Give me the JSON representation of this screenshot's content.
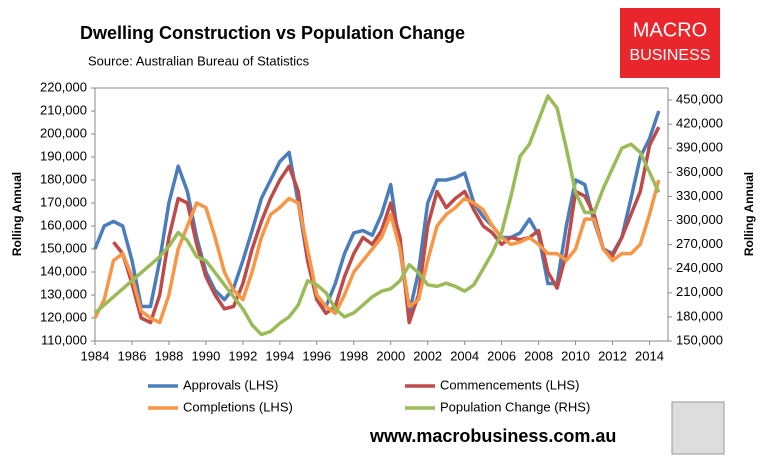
{
  "chart_data": {
    "type": "line",
    "title": "Dwelling Construction vs Population Change",
    "subtitle": "Source: Australian Bureau of Statistics",
    "y_label": "Rolling Annual",
    "y2_label": "Rolling Annual",
    "brand": [
      "MACRO",
      "BUSINESS"
    ],
    "website": "www.macrobusiness.com.au",
    "xlim": [
      1984,
      2015
    ],
    "xticks": [
      1984,
      1986,
      1988,
      1990,
      1992,
      1994,
      1996,
      1998,
      2000,
      2002,
      2004,
      2006,
      2008,
      2010,
      2012,
      2014
    ],
    "ylim": [
      110000,
      220000
    ],
    "yticks": [
      {
        "value": 110000,
        "label": "110,000"
      },
      {
        "value": 120000,
        "label": "120,000"
      },
      {
        "value": 130000,
        "label": "130,000"
      },
      {
        "value": 140000,
        "label": "140,000"
      },
      {
        "value": 150000,
        "label": "150,000"
      },
      {
        "value": 160000,
        "label": "160,000"
      },
      {
        "value": 170000,
        "label": "170,000"
      },
      {
        "value": 180000,
        "label": "180,000"
      },
      {
        "value": 190000,
        "label": "190,000"
      },
      {
        "value": 200000,
        "label": "200,000"
      },
      {
        "value": 210000,
        "label": "210,000"
      },
      {
        "value": 220000,
        "label": "220,000"
      }
    ],
    "y2lim": [
      150000,
      465000
    ],
    "y2ticks": [
      {
        "value": 150000,
        "label": "150,000"
      },
      {
        "value": 180000,
        "label": "180,000"
      },
      {
        "value": 210000,
        "label": "210,000"
      },
      {
        "value": 240000,
        "label": "240,000"
      },
      {
        "value": 270000,
        "label": "270,000"
      },
      {
        "value": 300000,
        "label": "300,000"
      },
      {
        "value": 330000,
        "label": "330,000"
      },
      {
        "value": 360000,
        "label": "360,000"
      },
      {
        "value": 390000,
        "label": "390,000"
      },
      {
        "value": 420000,
        "label": "420,000"
      },
      {
        "value": 450000,
        "label": "450,000"
      }
    ],
    "grid": false,
    "x": [
      1984,
      1984.5,
      1985,
      1985.5,
      1986,
      1986.5,
      1987,
      1987.5,
      1988,
      1988.5,
      1989,
      1989.5,
      1990,
      1990.5,
      1991,
      1991.5,
      1992,
      1992.5,
      1993,
      1993.5,
      1994,
      1994.5,
      1995,
      1995.5,
      1996,
      1996.5,
      1997,
      1997.5,
      1998,
      1998.5,
      1999,
      1999.5,
      2000,
      2000.5,
      2001,
      2001.5,
      2002,
      2002.5,
      2003,
      2003.5,
      2004,
      2004.5,
      2005,
      2005.5,
      2006,
      2006.5,
      2007,
      2007.5,
      2008,
      2008.5,
      2009,
      2009.5,
      2010,
      2010.5,
      2011,
      2011.5,
      2012,
      2012.5,
      2013,
      2013.5,
      2014,
      2014.5
    ],
    "series": [
      {
        "name": "Approvals (LHS)",
        "color": "#4a7ebb",
        "values": [
          150000,
          160000,
          162000,
          160000,
          145000,
          125000,
          125000,
          145000,
          170000,
          186000,
          175000,
          155000,
          140000,
          132000,
          128000,
          133000,
          145000,
          158000,
          172000,
          180000,
          188000,
          192000,
          170000,
          145000,
          128000,
          125000,
          135000,
          148000,
          157000,
          158000,
          156000,
          165000,
          178000,
          150000,
          122000,
          140000,
          170000,
          180000,
          180000,
          181000,
          183000,
          170000,
          164000,
          160000,
          155000,
          155000,
          157000,
          163000,
          156000,
          135000,
          135000,
          160000,
          180000,
          178000,
          162000,
          150000,
          148000,
          155000,
          172000,
          190000,
          198000,
          210000
        ]
      },
      {
        "name": "Commencements (LHS)",
        "color": "#be4b48",
        "values": [
          null,
          null,
          153000,
          148000,
          135000,
          120000,
          118000,
          130000,
          155000,
          172000,
          170000,
          152000,
          138000,
          130000,
          124000,
          125000,
          135000,
          150000,
          162000,
          172000,
          180000,
          186000,
          175000,
          145000,
          128000,
          122000,
          125000,
          138000,
          148000,
          155000,
          152000,
          158000,
          170000,
          155000,
          118000,
          130000,
          160000,
          175000,
          168000,
          172000,
          175000,
          167000,
          160000,
          157000,
          152000,
          155000,
          154000,
          155000,
          158000,
          140000,
          133000,
          148000,
          175000,
          173000,
          165000,
          150000,
          147000,
          155000,
          165000,
          175000,
          195000,
          203000
        ]
      },
      {
        "name": "Completions (LHS)",
        "color": "#f79646",
        "values": [
          120000,
          128000,
          145000,
          148000,
          138000,
          123000,
          120000,
          118000,
          130000,
          150000,
          160000,
          170000,
          168000,
          155000,
          140000,
          132000,
          128000,
          140000,
          155000,
          165000,
          168000,
          172000,
          170000,
          150000,
          130000,
          125000,
          122000,
          130000,
          140000,
          145000,
          150000,
          155000,
          165000,
          150000,
          125000,
          128000,
          145000,
          160000,
          165000,
          168000,
          172000,
          170000,
          167000,
          160000,
          155000,
          152000,
          153000,
          155000,
          152000,
          148000,
          148000,
          145000,
          150000,
          163000,
          163000,
          150000,
          145000,
          148000,
          148000,
          152000,
          165000,
          180000
        ]
      },
      {
        "name": "Population Change (RHS)",
        "color": "#9bbb59",
        "axis": "y2",
        "values": [
          185000,
          195000,
          205000,
          215000,
          225000,
          235000,
          245000,
          255000,
          268000,
          285000,
          275000,
          255000,
          250000,
          235000,
          220000,
          205000,
          190000,
          170000,
          158000,
          162000,
          172000,
          180000,
          195000,
          225000,
          220000,
          210000,
          190000,
          180000,
          185000,
          195000,
          205000,
          212000,
          215000,
          225000,
          245000,
          235000,
          220000,
          218000,
          222000,
          218000,
          212000,
          220000,
          240000,
          260000,
          285000,
          330000,
          380000,
          395000,
          425000,
          455000,
          440000,
          390000,
          335000,
          310000,
          310000,
          340000,
          365000,
          390000,
          395000,
          385000,
          360000,
          335000
        ]
      }
    ]
  }
}
